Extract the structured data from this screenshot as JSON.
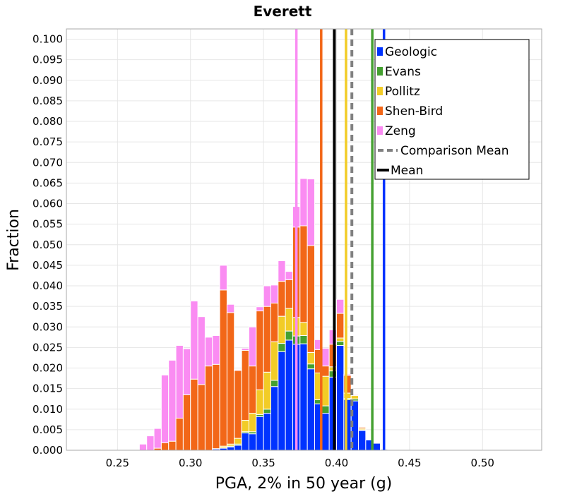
{
  "chart_data": {
    "type": "bar",
    "stacked": true,
    "title": "Everett",
    "xlabel": "PGA, 2% in 50 year (g)",
    "ylabel": "Fraction",
    "xlim": [
      0.215,
      0.5405
    ],
    "ylim": [
      0,
      0.1025
    ],
    "bin_width": 0.005,
    "x_ticks": [
      "0.25",
      "0.30",
      "0.35",
      "0.40",
      "0.45",
      "0.50"
    ],
    "x_tick_values": [
      0.25,
      0.3,
      0.35,
      0.4,
      0.45,
      0.5
    ],
    "y_ticks": [
      "0.000",
      "0.005",
      "0.010",
      "0.015",
      "0.020",
      "0.025",
      "0.030",
      "0.035",
      "0.040",
      "0.045",
      "0.050",
      "0.055",
      "0.060",
      "0.065",
      "0.070",
      "0.075",
      "0.080",
      "0.085",
      "0.090",
      "0.095",
      "0.100"
    ],
    "y_tick_values": [
      0,
      0.005,
      0.01,
      0.015,
      0.02,
      0.025,
      0.03,
      0.035,
      0.04,
      0.045,
      0.05,
      0.055,
      0.06,
      0.065,
      0.07,
      0.075,
      0.08,
      0.085,
      0.09,
      0.095,
      0.1
    ],
    "bin_centers": [
      0.2575,
      0.2625,
      0.2675,
      0.2725,
      0.2775,
      0.2825,
      0.2875,
      0.2925,
      0.2975,
      0.3025,
      0.3075,
      0.3125,
      0.3175,
      0.3225,
      0.3275,
      0.3325,
      0.3375,
      0.3425,
      0.3475,
      0.3525,
      0.3575,
      0.3625,
      0.3675,
      0.3725,
      0.3775,
      0.3825,
      0.3875,
      0.3925,
      0.3975,
      0.4025,
      0.4075,
      0.4125,
      0.4175,
      0.4225,
      0.4275,
      0.4325,
      0.4375,
      0.4425,
      0.4475,
      0.4525,
      0.4575,
      0.4625,
      0.4675,
      0.4725,
      0.4775,
      0.4825,
      0.4875,
      0.4925,
      0.4975,
      0.5025,
      0.5075,
      0.5125,
      0.5175,
      0.5225,
      0.5275,
      0.5325,
      0.5375
    ],
    "series": [
      {
        "name": "Geologic",
        "color": "#0033ff",
        "values": [
          0,
          0,
          0,
          0,
          0,
          0,
          0,
          0,
          0,
          0,
          0,
          0,
          0.0003,
          0.0005,
          0.0008,
          0.0012,
          0.0042,
          0.004,
          0.0082,
          0.009,
          0.0155,
          0.024,
          0.0268,
          0.0258,
          0.0259,
          0.0198,
          0.0113,
          0.009,
          0.0178,
          0.0255,
          0.0123,
          0.012,
          0.0048,
          0.0025,
          0.0017,
          0.0002,
          0,
          0,
          0,
          0,
          0,
          0,
          0,
          0,
          0,
          0,
          0,
          0,
          0,
          0,
          0,
          0,
          0,
          0,
          0,
          0,
          0
        ]
      },
      {
        "name": "Evans",
        "color": "#44a030",
        "values": [
          0,
          0,
          0,
          0,
          0,
          0,
          0,
          0,
          0,
          0,
          0,
          0,
          0,
          0.0001,
          0.0002,
          0.0003,
          0.0003,
          0.0005,
          0.0005,
          0.001,
          0.0015,
          0.002,
          0.0022,
          0.002,
          0.002,
          0.0012,
          0.001,
          0.0018,
          0.0015,
          0.001,
          0.0003,
          0.0005,
          0.0002,
          0,
          0,
          0,
          0,
          0,
          0,
          0,
          0,
          0,
          0,
          0,
          0,
          0,
          0,
          0,
          0,
          0,
          0,
          0,
          0,
          0,
          0,
          0,
          0
        ]
      },
      {
        "name": "Pollitz",
        "color": "#f2cc27",
        "values": [
          0,
          0,
          0,
          0,
          0,
          0,
          0,
          0,
          0,
          0,
          0,
          0,
          0.0001,
          0.0004,
          0.0005,
          0.0014,
          0.0028,
          0.0045,
          0.006,
          0.009,
          0.0094,
          0.0066,
          0.0055,
          0.0045,
          0.0032,
          0.0028,
          0.0065,
          0.0072,
          0.001,
          0.0008,
          0.0013,
          0.0008,
          0.0003,
          0,
          0,
          0,
          0,
          0,
          0,
          0,
          0,
          0,
          0,
          0,
          0,
          0,
          0,
          0,
          0,
          0,
          0,
          0,
          0,
          0,
          0,
          0,
          0
        ]
      },
      {
        "name": "Shen-Bird",
        "color": "#f26718",
        "values": [
          0,
          0,
          0,
          0,
          0.0005,
          0.0018,
          0.0022,
          0.0078,
          0.0135,
          0.0173,
          0.016,
          0.0205,
          0.0205,
          0.038,
          0.032,
          0.0165,
          0.017,
          0.0115,
          0.0192,
          0.016,
          0.0094,
          0.0085,
          0.007,
          0.022,
          0.0235,
          0.026,
          0.0057,
          0.0025,
          0.0055,
          0.006,
          0.0043,
          0.0002,
          0.0003,
          0,
          0,
          0,
          0,
          0,
          0,
          0,
          0,
          0,
          0,
          0,
          0,
          0,
          0,
          0,
          0,
          0,
          0,
          0,
          0,
          0,
          0,
          0,
          0
        ]
      },
      {
        "name": "Zeng",
        "color": "#fa8cf2",
        "values": [
          0,
          0.0001,
          0.0015,
          0.0035,
          0.0048,
          0.0165,
          0.0197,
          0.0177,
          0.0112,
          0.019,
          0.0165,
          0.007,
          0.007,
          0.006,
          0.002,
          0.0002,
          0.0005,
          0.0095,
          0.001,
          0.005,
          0.0044,
          0.005,
          0.002,
          0.005,
          0.0115,
          0.0162,
          0.0024,
          0.0043,
          0.0035,
          0.0034,
          0.0003,
          0.0002,
          0,
          0,
          0,
          0,
          0,
          0,
          0,
          0,
          0,
          0,
          0,
          0,
          0,
          0,
          0,
          0,
          0,
          0,
          0,
          0,
          0,
          0,
          0,
          0,
          0
        ]
      }
    ],
    "mean_lines": [
      {
        "name": "Geologic",
        "x": 0.4325,
        "color": "#0033ff"
      },
      {
        "name": "Evans",
        "x": 0.4245,
        "color": "#44a030"
      },
      {
        "name": "Pollitz",
        "x": 0.4065,
        "color": "#f2cc27"
      },
      {
        "name": "Shen-Bird",
        "x": 0.3895,
        "color": "#f26718"
      },
      {
        "name": "Zeng",
        "x": 0.3725,
        "color": "#fa8cf2"
      }
    ],
    "comparison_mean": {
      "name": "Comparison Mean",
      "x": 0.4105,
      "color": "#808080"
    },
    "mean": {
      "name": "Mean",
      "x": 0.3985,
      "color": "#000000"
    },
    "legend": {
      "position": "top-right",
      "items": [
        "Geologic",
        "Evans",
        "Pollitz",
        "Shen-Bird",
        "Zeng",
        "Comparison Mean",
        "Mean"
      ]
    },
    "grid": true
  }
}
